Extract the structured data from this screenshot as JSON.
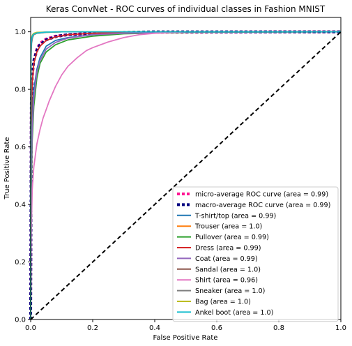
{
  "chart_data": {
    "type": "line",
    "title": "Keras ConvNet - ROC curves of individual classes in Fashion MNIST",
    "xlabel": "False Positive Rate",
    "ylabel": "True Positive Rate",
    "xlim": [
      0.0,
      1.0
    ],
    "ylim": [
      0.0,
      1.05
    ],
    "xticks": [
      "0.0",
      "0.2",
      "0.4",
      "0.6",
      "0.8",
      "1.0"
    ],
    "yticks": [
      "0.0",
      "0.2",
      "0.4",
      "0.6",
      "0.8",
      "1.0"
    ],
    "grid": false,
    "legend_position": "lower right",
    "diagonal": {
      "x": [
        0,
        1
      ],
      "y": [
        0,
        1
      ],
      "color": "#000000",
      "style": "dashed"
    },
    "series": [
      {
        "name": "micro-average ROC curve (area = 0.99)",
        "color": "#ff1493",
        "style": "dotted",
        "x": [
          0,
          0.002,
          0.005,
          0.01,
          0.02,
          0.03,
          0.05,
          0.08,
          0.12,
          0.2,
          0.3,
          0.4,
          0.6,
          0.8,
          1.0
        ],
        "y": [
          0,
          0.72,
          0.84,
          0.9,
          0.94,
          0.96,
          0.975,
          0.985,
          0.99,
          0.995,
          0.997,
          0.998,
          0.999,
          1.0,
          1.0
        ]
      },
      {
        "name": "macro-average ROC curve (area = 0.99)",
        "color": "#000080",
        "style": "dotted",
        "x": [
          0,
          0.002,
          0.005,
          0.01,
          0.02,
          0.03,
          0.05,
          0.08,
          0.12,
          0.2,
          0.3,
          0.4,
          0.6,
          0.8,
          1.0
        ],
        "y": [
          0,
          0.75,
          0.85,
          0.9,
          0.935,
          0.955,
          0.972,
          0.983,
          0.99,
          0.995,
          0.998,
          1.0,
          1.0,
          1.0,
          1.0
        ]
      },
      {
        "name": "T-shirt/top (area = 0.99)",
        "color": "#1f77b4",
        "style": "solid",
        "x": [
          0,
          0.002,
          0.005,
          0.01,
          0.02,
          0.03,
          0.05,
          0.08,
          0.12,
          0.2,
          0.3,
          0.5,
          0.7,
          1.0
        ],
        "y": [
          0,
          0.55,
          0.72,
          0.8,
          0.87,
          0.91,
          0.95,
          0.97,
          0.98,
          0.99,
          0.995,
          0.998,
          1.0,
          1.0
        ]
      },
      {
        "name": "Trouser (area = 1.0)",
        "color": "#ff7f0e",
        "style": "solid",
        "x": [
          0,
          0.001,
          0.003,
          0.006,
          0.01,
          0.02,
          0.05,
          0.1,
          0.3,
          1.0
        ],
        "y": [
          0,
          0.92,
          0.97,
          0.985,
          0.99,
          0.995,
          0.998,
          1.0,
          1.0,
          1.0
        ]
      },
      {
        "name": "Pullover (area = 0.99)",
        "color": "#2ca02c",
        "style": "solid",
        "x": [
          0,
          0.002,
          0.005,
          0.01,
          0.02,
          0.03,
          0.05,
          0.08,
          0.12,
          0.2,
          0.3,
          0.5,
          1.0
        ],
        "y": [
          0,
          0.45,
          0.62,
          0.74,
          0.84,
          0.89,
          0.93,
          0.955,
          0.972,
          0.985,
          0.993,
          0.998,
          1.0
        ]
      },
      {
        "name": "Dress (area = 0.99)",
        "color": "#d62728",
        "style": "solid",
        "x": [
          0,
          0.002,
          0.005,
          0.01,
          0.02,
          0.03,
          0.05,
          0.08,
          0.12,
          0.2,
          0.3,
          0.5,
          1.0
        ],
        "y": [
          0,
          0.68,
          0.82,
          0.89,
          0.93,
          0.95,
          0.97,
          0.982,
          0.99,
          0.995,
          0.998,
          1.0,
          1.0
        ]
      },
      {
        "name": "Coat (area = 0.99)",
        "color": "#9467bd",
        "style": "solid",
        "x": [
          0,
          0.002,
          0.005,
          0.01,
          0.02,
          0.03,
          0.05,
          0.08,
          0.12,
          0.2,
          0.3,
          0.5,
          1.0
        ],
        "y": [
          0,
          0.5,
          0.66,
          0.77,
          0.86,
          0.9,
          0.94,
          0.963,
          0.978,
          0.99,
          0.995,
          0.999,
          1.0
        ]
      },
      {
        "name": "Sandal (area = 1.0)",
        "color": "#8c564b",
        "style": "solid",
        "x": [
          0,
          0.001,
          0.003,
          0.006,
          0.01,
          0.02,
          0.05,
          0.1,
          0.3,
          1.0
        ],
        "y": [
          0,
          0.93,
          0.975,
          0.988,
          0.993,
          0.997,
          0.999,
          1.0,
          1.0,
          1.0
        ]
      },
      {
        "name": "Shirt (area = 0.96)",
        "color": "#e377c2",
        "style": "solid",
        "x": [
          0,
          0.002,
          0.005,
          0.01,
          0.015,
          0.02,
          0.03,
          0.04,
          0.05,
          0.06,
          0.08,
          0.1,
          0.12,
          0.15,
          0.18,
          0.2,
          0.25,
          0.3,
          0.35,
          0.4,
          0.5,
          0.7,
          1.0
        ],
        "y": [
          0,
          0.3,
          0.45,
          0.53,
          0.57,
          0.61,
          0.66,
          0.7,
          0.73,
          0.76,
          0.81,
          0.85,
          0.88,
          0.91,
          0.935,
          0.945,
          0.965,
          0.98,
          0.99,
          0.995,
          1.0,
          1.0,
          1.0
        ]
      },
      {
        "name": "Sneaker (area = 1.0)",
        "color": "#7f7f7f",
        "style": "solid",
        "x": [
          0,
          0.001,
          0.003,
          0.006,
          0.01,
          0.02,
          0.05,
          0.1,
          0.3,
          1.0
        ],
        "y": [
          0,
          0.9,
          0.96,
          0.98,
          0.99,
          0.995,
          0.998,
          1.0,
          1.0,
          1.0
        ]
      },
      {
        "name": "Bag (area = 1.0)",
        "color": "#bcbd22",
        "style": "solid",
        "x": [
          0,
          0.001,
          0.003,
          0.006,
          0.01,
          0.02,
          0.05,
          0.1,
          0.3,
          1.0
        ],
        "y": [
          0,
          0.95,
          0.98,
          0.99,
          0.995,
          0.998,
          0.999,
          1.0,
          1.0,
          1.0
        ]
      },
      {
        "name": "Ankel boot (area = 1.0)",
        "color": "#17becf",
        "style": "solid",
        "x": [
          0,
          0.001,
          0.003,
          0.006,
          0.01,
          0.02,
          0.05,
          0.1,
          0.3,
          1.0
        ],
        "y": [
          0,
          0.94,
          0.975,
          0.987,
          0.992,
          0.996,
          0.999,
          1.0,
          1.0,
          1.0
        ]
      }
    ]
  }
}
